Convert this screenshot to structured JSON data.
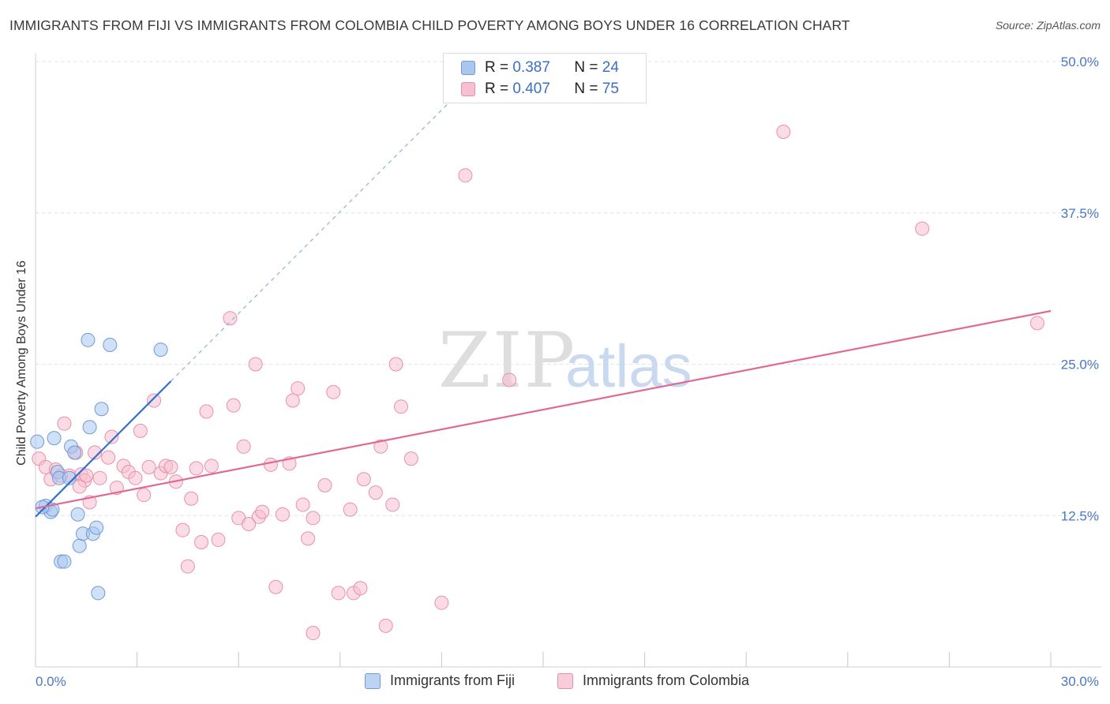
{
  "title": "IMMIGRANTS FROM FIJI VS IMMIGRANTS FROM COLOMBIA CHILD POVERTY AMONG BOYS UNDER 16 CORRELATION CHART",
  "source": "Source: ZipAtlas.com",
  "watermark": {
    "zip": "ZIP",
    "atlas": "atlas"
  },
  "legend": {
    "r_label": "R =",
    "n_label": "N =",
    "rows": [
      {
        "r": "0.387",
        "n": "24",
        "color": "#a9c6ef",
        "border": "#6f9ad6"
      },
      {
        "r": "0.407",
        "n": "75",
        "color": "#f7c0d0",
        "border": "#e890ab"
      }
    ]
  },
  "bottom_legend": [
    {
      "label": "Immigrants from Fiji",
      "color": "#bcd3f3",
      "border": "#6f9ad6"
    },
    {
      "label": "Immigrants from Colombia",
      "color": "#f9ccda",
      "border": "#e890ab"
    }
  ],
  "chart_data": {
    "type": "scatter",
    "title": "IMMIGRANTS FROM FIJI VS IMMIGRANTS FROM COLOMBIA CHILD POVERTY AMONG BOYS UNDER 16 CORRELATION CHART",
    "xlabel": "",
    "ylabel": "Child Poverty Among Boys Under 16",
    "xlim": [
      0,
      30
    ],
    "ylim": [
      0,
      50
    ],
    "x_tick_labels": [
      {
        "v": 0,
        "t": "0.0%"
      },
      {
        "v": 30,
        "t": "30.0%"
      }
    ],
    "y_tick_labels": [
      {
        "v": 12.5,
        "t": "12.5%"
      },
      {
        "v": 25,
        "t": "25.0%"
      },
      {
        "v": 37.5,
        "t": "37.5%"
      },
      {
        "v": 50,
        "t": "50.0%"
      }
    ],
    "series": [
      {
        "name": "Immigrants from Fiji",
        "color": "#a9c6ef",
        "stroke": "#6f9ad6",
        "line_color": "#2f6fd0",
        "trend": {
          "x0": 0,
          "y0": 12.4,
          "x1": 4.0,
          "y1": 23.6,
          "dash_to_x": 12.5,
          "dash_to_y": 47.4
        },
        "points": [
          [
            0.05,
            18.6
          ],
          [
            0.3,
            13.3
          ],
          [
            0.45,
            12.8
          ],
          [
            0.5,
            13.0
          ],
          [
            0.55,
            18.9
          ],
          [
            0.65,
            16.1
          ],
          [
            0.7,
            15.6
          ],
          [
            0.75,
            8.7
          ],
          [
            0.85,
            8.7
          ],
          [
            1.0,
            15.6
          ],
          [
            1.05,
            18.2
          ],
          [
            1.15,
            17.7
          ],
          [
            1.25,
            12.6
          ],
          [
            1.3,
            10.0
          ],
          [
            1.4,
            11.0
          ],
          [
            1.55,
            27.0
          ],
          [
            1.6,
            19.8
          ],
          [
            1.7,
            11.0
          ],
          [
            1.8,
            11.5
          ],
          [
            1.85,
            6.1
          ],
          [
            1.95,
            21.3
          ],
          [
            2.2,
            26.6
          ],
          [
            3.7,
            26.2
          ],
          [
            0.2,
            13.2
          ]
        ]
      },
      {
        "name": "Immigrants from Colombia",
        "color": "#f7c0d0",
        "stroke": "#e890ab",
        "line_color": "#e06a94",
        "trend": {
          "x0": 0,
          "y0": 13.1,
          "x1": 30,
          "y1": 29.4
        },
        "points": [
          [
            0.1,
            17.2
          ],
          [
            0.3,
            16.5
          ],
          [
            0.45,
            15.5
          ],
          [
            0.6,
            16.3
          ],
          [
            0.75,
            15.8
          ],
          [
            0.85,
            20.1
          ],
          [
            1.0,
            15.8
          ],
          [
            1.2,
            17.7
          ],
          [
            1.35,
            15.9
          ],
          [
            1.45,
            15.4
          ],
          [
            1.5,
            15.8
          ],
          [
            1.6,
            13.6
          ],
          [
            1.75,
            17.7
          ],
          [
            1.9,
            15.6
          ],
          [
            2.15,
            17.3
          ],
          [
            2.25,
            19.0
          ],
          [
            2.4,
            14.8
          ],
          [
            2.6,
            16.6
          ],
          [
            2.75,
            16.1
          ],
          [
            2.95,
            15.6
          ],
          [
            3.1,
            19.5
          ],
          [
            3.2,
            14.2
          ],
          [
            3.35,
            16.5
          ],
          [
            3.5,
            22.0
          ],
          [
            3.7,
            16.0
          ],
          [
            3.85,
            16.6
          ],
          [
            4.0,
            16.5
          ],
          [
            4.15,
            15.3
          ],
          [
            4.35,
            11.3
          ],
          [
            4.5,
            8.3
          ],
          [
            4.6,
            13.9
          ],
          [
            4.75,
            16.4
          ],
          [
            4.9,
            10.3
          ],
          [
            5.05,
            21.1
          ],
          [
            5.2,
            16.6
          ],
          [
            5.4,
            10.5
          ],
          [
            5.75,
            28.8
          ],
          [
            5.85,
            21.6
          ],
          [
            6.0,
            12.3
          ],
          [
            6.15,
            18.2
          ],
          [
            6.3,
            11.8
          ],
          [
            6.5,
            25.0
          ],
          [
            6.6,
            12.4
          ],
          [
            6.7,
            12.8
          ],
          [
            6.95,
            16.7
          ],
          [
            7.3,
            12.6
          ],
          [
            7.1,
            6.6
          ],
          [
            7.5,
            16.8
          ],
          [
            7.6,
            22.0
          ],
          [
            7.75,
            23.0
          ],
          [
            7.9,
            13.4
          ],
          [
            8.05,
            10.6
          ],
          [
            8.2,
            12.3
          ],
          [
            8.2,
            2.8
          ],
          [
            8.55,
            15.0
          ],
          [
            8.8,
            22.7
          ],
          [
            8.95,
            6.1
          ],
          [
            9.3,
            13.0
          ],
          [
            9.4,
            6.1
          ],
          [
            9.6,
            6.5
          ],
          [
            9.7,
            15.5
          ],
          [
            10.05,
            14.4
          ],
          [
            10.2,
            18.2
          ],
          [
            10.35,
            3.4
          ],
          [
            10.55,
            13.4
          ],
          [
            10.65,
            25.0
          ],
          [
            10.8,
            21.5
          ],
          [
            11.1,
            17.2
          ],
          [
            12.0,
            5.3
          ],
          [
            12.7,
            40.6
          ],
          [
            14.0,
            23.7
          ],
          [
            22.1,
            44.2
          ],
          [
            26.2,
            36.2
          ],
          [
            29.6,
            28.4
          ],
          [
            1.3,
            14.9
          ]
        ]
      }
    ]
  }
}
